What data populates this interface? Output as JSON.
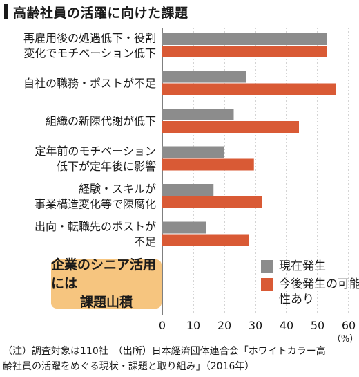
{
  "title": "高齢社員の活躍に向けた課題",
  "callout": {
    "line1": "企業のシニア活用には",
    "line2": "課題山積"
  },
  "source": {
    "line1": "（注）調査対象は110社　（出所）日本経済団体連合会「ホワイトカラー高",
    "line2": "齢社員の活躍をめぐる現状・課題と取り組み」（2016年）"
  },
  "colors": {
    "current": "#8c8c8c",
    "future": "#d95a35",
    "grid": "#aaaaaa",
    "callout_bg": "#f6c57f"
  },
  "chart_data": {
    "type": "bar",
    "orientation": "horizontal",
    "categories": [
      [
        "再雇用後の処遇低下・役割",
        "変化でモチベーション低下"
      ],
      [
        "自社の職務・ポストが不足"
      ],
      [
        "組織の新陳代謝が低下"
      ],
      [
        "定年前のモチベーション",
        "低下が定年後に影響"
      ],
      [
        "経験・スキルが",
        "事業構造変化等で陳腐化"
      ],
      [
        "出向・転職先のポストが",
        "不足"
      ]
    ],
    "series": [
      {
        "name": "現在発生",
        "values": [
          53,
          27,
          23,
          20,
          16.5,
          14
        ]
      },
      {
        "name": "今後発生の可能性あり",
        "values": [
          53,
          56,
          44,
          29.5,
          32,
          28
        ]
      }
    ],
    "xlim": [
      0,
      60
    ],
    "xticks": [
      0,
      10,
      20,
      30,
      40,
      50,
      60
    ],
    "unit": "（%）",
    "grid": true,
    "legend_position": "bottom-right"
  }
}
